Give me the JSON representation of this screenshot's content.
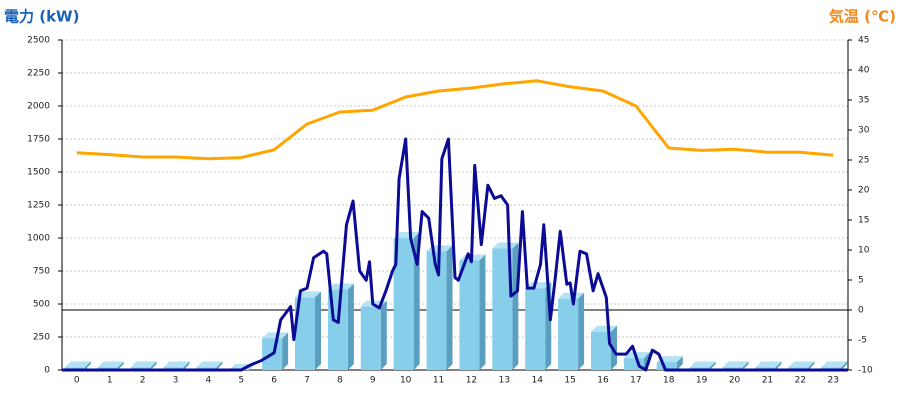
{
  "chart_data": {
    "type": "bar",
    "title": "電力 (kW)",
    "y2_title": "気温 (℃)",
    "title_color": "#1a62b8",
    "y2_title_color": "#f08a1c",
    "categories": [
      "0",
      "1",
      "2",
      "3",
      "4",
      "5",
      "6",
      "7",
      "8",
      "9",
      "10",
      "11",
      "12",
      "13",
      "14",
      "15",
      "16",
      "17",
      "18",
      "19",
      "20",
      "21",
      "22",
      "23"
    ],
    "xlim": [
      -0.45,
      23.45
    ],
    "ylim": [
      0,
      2500
    ],
    "yticks": [
      0,
      250,
      500,
      750,
      1000,
      1250,
      1500,
      1750,
      2000,
      2250,
      2500
    ],
    "y2lim": [
      -10,
      45
    ],
    "y2ticks": [
      -10,
      -5,
      0,
      5,
      10,
      15,
      20,
      25,
      30,
      35,
      40,
      45
    ],
    "grid": true,
    "series": [
      {
        "type": "bar",
        "color": "#87ceeb",
        "values": [
          20,
          20,
          20,
          20,
          20,
          0,
          240,
          550,
          610,
          480,
          1000,
          900,
          830,
          920,
          620,
          540,
          290,
          90,
          60,
          20,
          20,
          20,
          20,
          20
        ]
      },
      {
        "type": "line",
        "color": "#0b0b96",
        "x": [
          -0.45,
          5,
          5.3,
          5.6,
          6.0,
          6.2,
          6.5,
          6.6,
          6.8,
          7.0,
          7.2,
          7.5,
          7.6,
          7.8,
          7.95,
          8.2,
          8.4,
          8.6,
          8.8,
          8.9,
          9.0,
          9.2,
          9.4,
          9.6,
          9.7,
          9.8,
          10.0,
          10.15,
          10.35,
          10.5,
          10.7,
          10.9,
          11.0,
          11.1,
          11.3,
          11.5,
          11.6,
          11.9,
          12.0,
          12.1,
          12.3,
          12.5,
          12.7,
          12.9,
          13.1,
          13.2,
          13.4,
          13.55,
          13.7,
          13.9,
          14.1,
          14.2,
          14.4,
          14.55,
          14.7,
          14.9,
          15.0,
          15.1,
          15.3,
          15.5,
          15.7,
          15.85,
          16.1,
          16.2,
          16.4,
          16.7,
          16.9,
          17.1,
          17.3,
          17.5,
          17.7,
          17.9,
          18.2,
          23.45
        ],
        "values": [
          0,
          0,
          40,
          70,
          130,
          380,
          480,
          230,
          600,
          620,
          850,
          900,
          880,
          380,
          360,
          1100,
          1280,
          750,
          680,
          820,
          500,
          470,
          600,
          750,
          800,
          1450,
          1750,
          1000,
          800,
          1200,
          1150,
          800,
          720,
          1600,
          1750,
          700,
          680,
          880,
          820,
          1550,
          950,
          1400,
          1300,
          1320,
          1250,
          560,
          600,
          1200,
          620,
          620,
          800,
          1100,
          380,
          700,
          1050,
          650,
          660,
          500,
          900,
          880,
          600,
          730,
          550,
          200,
          120,
          120,
          180,
          30,
          0,
          150,
          120,
          0,
          0,
          0
        ]
      },
      {
        "type": "line",
        "axis": "y2",
        "color": "#ffa500",
        "values": [
          26.2,
          25.9,
          25.5,
          25.5,
          25.2,
          25.4,
          26.7,
          31,
          33,
          33.3,
          35.5,
          36.5,
          37,
          37.7,
          38.2,
          37.2,
          36.5,
          34,
          27,
          26.6,
          26.8,
          26.3,
          26.3,
          25.8
        ]
      }
    ]
  }
}
